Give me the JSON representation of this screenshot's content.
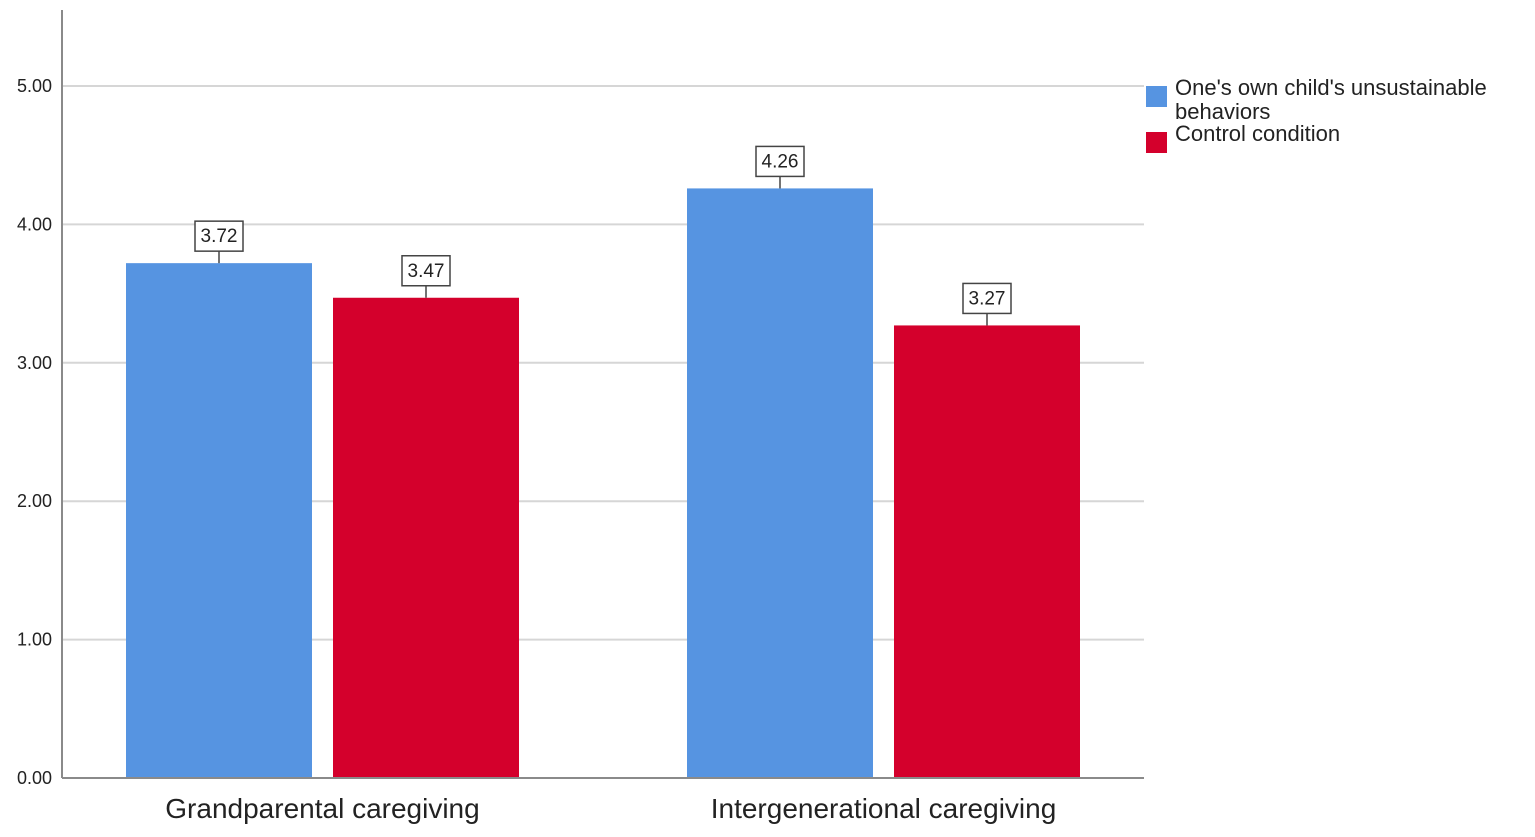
{
  "chart_data": {
    "type": "bar",
    "categories": [
      "Grandparental caregiving",
      "Intergenerational caregiving"
    ],
    "series": [
      {
        "name": "One's own child's unsustainable behaviors",
        "color": "#5694E1",
        "values": [
          3.72,
          4.26
        ],
        "labels": [
          "3.72",
          "4.26"
        ]
      },
      {
        "name": "Control condition",
        "color": "#D4002C",
        "values": [
          3.47,
          3.27
        ],
        "labels": [
          "3.47",
          "3.27"
        ]
      }
    ],
    "yticks": [
      0,
      1,
      2,
      3,
      4,
      5
    ],
    "ytick_labels": [
      "0.00",
      "1.00",
      "2.00",
      "3.00",
      "4.00",
      "5.00"
    ],
    "ylim": [
      0,
      5.5
    ],
    "grid": true,
    "legend_position": "top-right",
    "legend_lines": [
      [
        "One's own child's unsustainable",
        "behaviors"
      ],
      [
        "Control condition"
      ]
    ],
    "title": "",
    "xlabel": "",
    "ylabel": ""
  }
}
